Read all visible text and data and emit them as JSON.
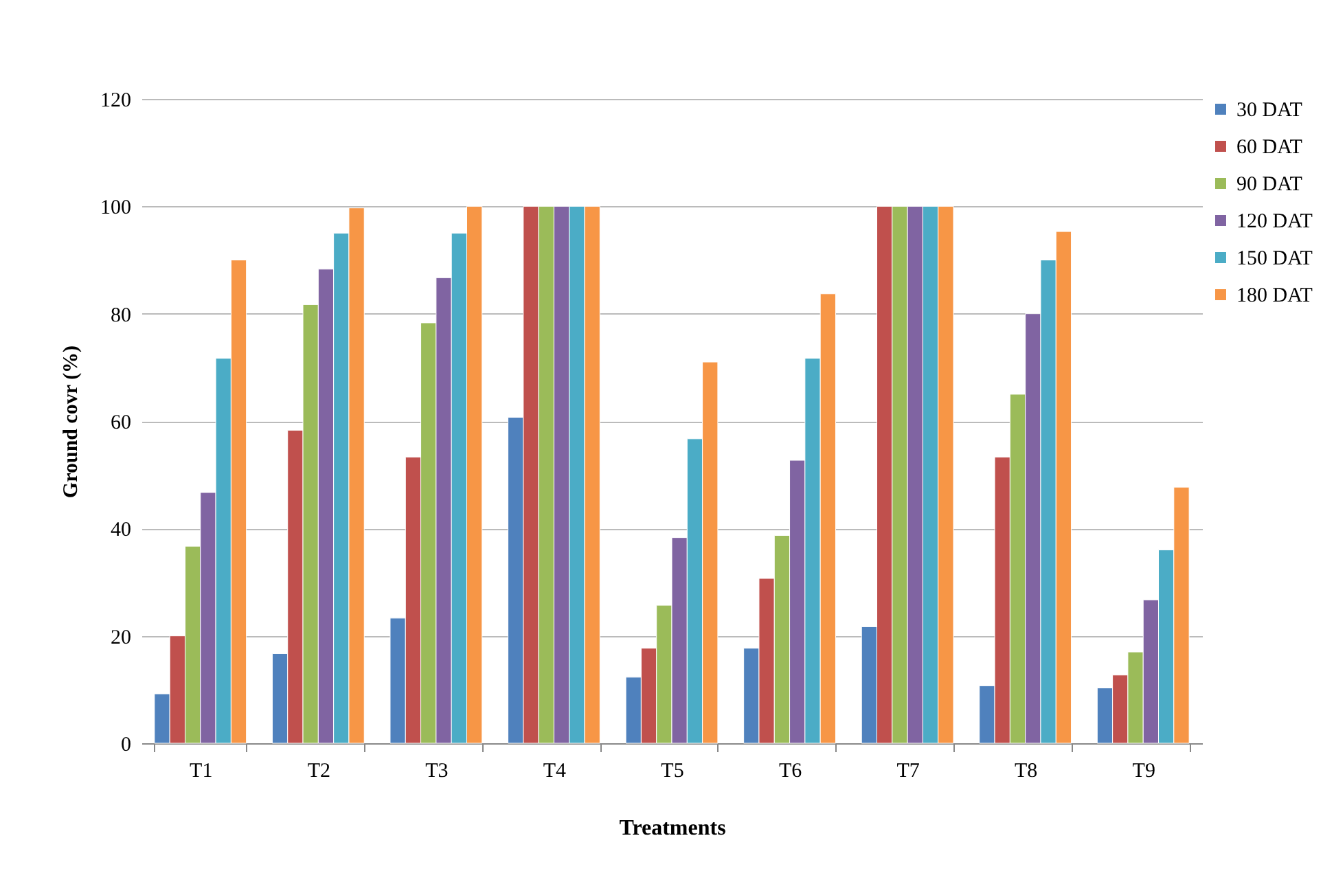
{
  "chart_data": {
    "type": "bar",
    "xlabel": "Treatments",
    "ylabel": "Ground covr (%)",
    "categories": [
      "T1",
      "T2",
      "T3",
      "T4",
      "T5",
      "T6",
      "T7",
      "T8",
      "T9"
    ],
    "series": [
      {
        "name": "30 DAT",
        "color": "#4f81bd",
        "values": [
          9.2,
          16.7,
          23.3,
          60.7,
          12.3,
          17.7,
          21.7,
          10.7,
          10.3
        ]
      },
      {
        "name": "60 DAT",
        "color": "#c0504d",
        "values": [
          20,
          58.3,
          53.3,
          100,
          17.7,
          30.7,
          100,
          53.3,
          12.7
        ]
      },
      {
        "name": "90 DAT",
        "color": "#9bbb59",
        "values": [
          36.7,
          81.7,
          78.3,
          100,
          25.7,
          38.7,
          100,
          65,
          17
        ]
      },
      {
        "name": "120 DAT",
        "color": "#8064a2",
        "values": [
          46.7,
          88.3,
          86.7,
          100,
          38.3,
          52.7,
          100,
          80,
          26.7
        ]
      },
      {
        "name": "150 DAT",
        "color": "#4bacc6",
        "values": [
          71.7,
          95,
          95,
          100,
          56.7,
          71.7,
          100,
          90,
          36
        ]
      },
      {
        "name": "180 DAT",
        "color": "#f79646",
        "values": [
          90,
          99.7,
          100,
          100,
          71,
          83.7,
          100,
          95.3,
          47.7
        ]
      }
    ],
    "ylim": [
      0,
      120
    ],
    "yticks": [
      0,
      20,
      40,
      60,
      80,
      100,
      120
    ],
    "grid": "y",
    "legend": "right"
  }
}
